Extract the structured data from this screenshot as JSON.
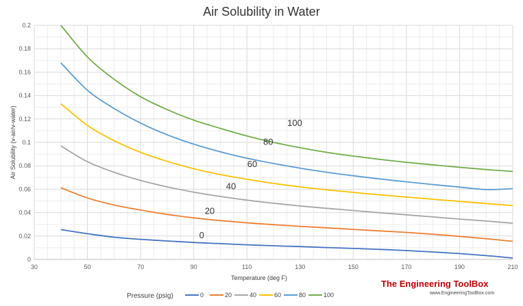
{
  "chart_data": {
    "type": "line",
    "title": "Air Solubility in Water",
    "xlabel": "Temperature (deg F)",
    "ylabel": "Air Solubility (v-air/v-water)",
    "xlim": [
      30,
      210
    ],
    "ylim": [
      0,
      0.2
    ],
    "x_ticks": [
      30,
      50,
      70,
      90,
      110,
      130,
      150,
      170,
      190,
      210
    ],
    "y_ticks": [
      "0",
      "0.02",
      "0.04",
      "0.06",
      "0.08",
      "0.1",
      "0.12",
      "0.14",
      "0.16",
      "0.18",
      "0.2"
    ],
    "grid": true,
    "legend": {
      "title": "Pressure (psig)",
      "position": "bottom"
    },
    "series": [
      {
        "name": "0",
        "label": "0",
        "label_at": [
          93,
          0.018
        ],
        "color": "#4472c4",
        "points": [
          [
            40,
            0.0255
          ],
          [
            50,
            0.022
          ],
          [
            60,
            0.019
          ],
          [
            70,
            0.0172
          ],
          [
            80,
            0.0158
          ],
          [
            90,
            0.0145
          ],
          [
            100,
            0.0135
          ],
          [
            110,
            0.0125
          ],
          [
            120,
            0.0117
          ],
          [
            130,
            0.011
          ],
          [
            140,
            0.0102
          ],
          [
            150,
            0.0094
          ],
          [
            160,
            0.0086
          ],
          [
            170,
            0.0076
          ],
          [
            180,
            0.0064
          ],
          [
            190,
            0.005
          ],
          [
            200,
            0.0033
          ],
          [
            210,
            0.0012
          ]
        ]
      },
      {
        "name": "20",
        "label": "20",
        "label_at": [
          96,
          0.039
        ],
        "color": "#ed7d31",
        "points": [
          [
            40,
            0.0612
          ],
          [
            50,
            0.0525
          ],
          [
            60,
            0.0465
          ],
          [
            70,
            0.0422
          ],
          [
            80,
            0.0385
          ],
          [
            90,
            0.0355
          ],
          [
            100,
            0.0332
          ],
          [
            110,
            0.0313
          ],
          [
            120,
            0.0297
          ],
          [
            130,
            0.0283
          ],
          [
            140,
            0.027
          ],
          [
            150,
            0.0257
          ],
          [
            160,
            0.0244
          ],
          [
            170,
            0.0231
          ],
          [
            180,
            0.0215
          ],
          [
            190,
            0.0197
          ],
          [
            200,
            0.0177
          ],
          [
            210,
            0.0155
          ]
        ]
      },
      {
        "name": "40",
        "label": "40",
        "label_at": [
          104,
          0.06
        ],
        "color": "#a5a5a5",
        "points": [
          [
            40,
            0.097
          ],
          [
            50,
            0.0835
          ],
          [
            60,
            0.0745
          ],
          [
            70,
            0.0675
          ],
          [
            80,
            0.062
          ],
          [
            90,
            0.0575
          ],
          [
            100,
            0.0538
          ],
          [
            110,
            0.0507
          ],
          [
            120,
            0.048
          ],
          [
            130,
            0.0457
          ],
          [
            140,
            0.0437
          ],
          [
            150,
            0.0418
          ],
          [
            160,
            0.0399
          ],
          [
            170,
            0.0381
          ],
          [
            180,
            0.0363
          ],
          [
            190,
            0.0345
          ],
          [
            200,
            0.0328
          ],
          [
            210,
            0.031
          ]
        ]
      },
      {
        "name": "60",
        "label": "60",
        "label_at": [
          112,
          0.079
        ],
        "color": "#ffc000",
        "points": [
          [
            40,
            0.133
          ],
          [
            50,
            0.1145
          ],
          [
            60,
            0.1015
          ],
          [
            70,
            0.0915
          ],
          [
            80,
            0.0838
          ],
          [
            90,
            0.0775
          ],
          [
            100,
            0.0725
          ],
          [
            110,
            0.0685
          ],
          [
            120,
            0.065
          ],
          [
            130,
            0.062
          ],
          [
            140,
            0.0595
          ],
          [
            150,
            0.0573
          ],
          [
            160,
            0.0552
          ],
          [
            170,
            0.0533
          ],
          [
            180,
            0.0514
          ],
          [
            190,
            0.0496
          ],
          [
            200,
            0.0478
          ],
          [
            210,
            0.046
          ]
        ]
      },
      {
        "name": "80",
        "label": "80",
        "label_at": [
          118,
          0.098
        ],
        "color": "#5b9bd5",
        "points": [
          [
            40,
            0.168
          ],
          [
            50,
            0.1445
          ],
          [
            60,
            0.129
          ],
          [
            70,
            0.1165
          ],
          [
            80,
            0.1065
          ],
          [
            90,
            0.0985
          ],
          [
            100,
            0.092
          ],
          [
            110,
            0.0865
          ],
          [
            120,
            0.082
          ],
          [
            130,
            0.078
          ],
          [
            140,
            0.0745
          ],
          [
            150,
            0.0715
          ],
          [
            160,
            0.0688
          ],
          [
            170,
            0.0663
          ],
          [
            180,
            0.064
          ],
          [
            190,
            0.0618
          ],
          [
            200,
            0.0597
          ],
          [
            210,
            0.0605
          ]
        ]
      },
      {
        "name": "100",
        "label": "100",
        "label_at": [
          128,
          0.114
        ],
        "color": "#70ad47",
        "points": [
          [
            40,
            0.2
          ],
          [
            50,
            0.173
          ],
          [
            60,
            0.154
          ],
          [
            70,
            0.139
          ],
          [
            80,
            0.128
          ],
          [
            90,
            0.119
          ],
          [
            100,
            0.112
          ],
          [
            110,
            0.1055
          ],
          [
            120,
            0.1
          ],
          [
            130,
            0.0955
          ],
          [
            140,
            0.0915
          ],
          [
            150,
            0.0883
          ],
          [
            160,
            0.0855
          ],
          [
            170,
            0.083
          ],
          [
            180,
            0.0808
          ],
          [
            190,
            0.0787
          ],
          [
            200,
            0.0768
          ],
          [
            210,
            0.0752
          ]
        ]
      }
    ]
  },
  "branding": {
    "name": "The Engineering ToolBox",
    "url": "www.EngineeringToolBox.com"
  }
}
